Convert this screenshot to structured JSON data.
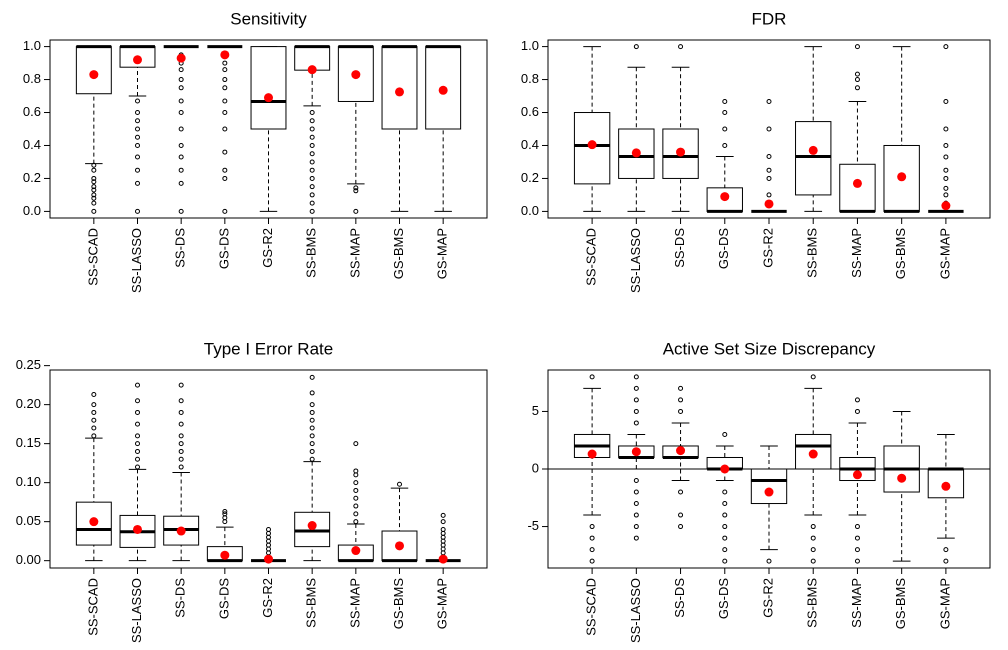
{
  "chart_data": [
    {
      "type": "box",
      "title": "Sensitivity",
      "categories": [
        "SS-SCAD",
        "SS-LASSO",
        "SS-DS",
        "GS-DS",
        "GS-R2",
        "SS-BMS",
        "SS-MAP",
        "GS-BMS",
        "GS-MAP"
      ],
      "ylim": [
        -0.04,
        1.04
      ],
      "yticks": [
        {
          "value": 0,
          "label": "0.0"
        },
        {
          "value": 0.2,
          "label": "0.2"
        },
        {
          "value": 0.4,
          "label": "0.4"
        },
        {
          "value": 0.6,
          "label": "0.6"
        },
        {
          "value": 0.8,
          "label": "0.8"
        },
        {
          "value": 1,
          "label": "1.0"
        }
      ],
      "mean_color": "#ff0000",
      "boxes": [
        {
          "whisker_low": 0.29,
          "q1": 0.714,
          "median": 1,
          "q3": 1,
          "whisker_high": 1,
          "mean": 0.83,
          "outliers": [
            0,
            0.05,
            0.08,
            0.1,
            0.13,
            0.15,
            0.18,
            0.2,
            0.25,
            0.28
          ]
        },
        {
          "whisker_low": 0.7,
          "q1": 0.875,
          "median": 1,
          "q3": 1,
          "whisker_high": 1,
          "mean": 0.92,
          "outliers": [
            0,
            0.17,
            0.25,
            0.33,
            0.4,
            0.45,
            0.5,
            0.55,
            0.6,
            0.67
          ]
        },
        {
          "whisker_low": 1,
          "q1": 1,
          "median": 1,
          "q3": 1,
          "whisker_high": 1,
          "mean": 0.93,
          "outliers": [
            0,
            0.17,
            0.25,
            0.33,
            0.4,
            0.5,
            0.6,
            0.67,
            0.75,
            0.8,
            0.86,
            0.9,
            0.95
          ]
        },
        {
          "whisker_low": 1,
          "q1": 1,
          "median": 1,
          "q3": 1,
          "whisker_high": 1,
          "mean": 0.95,
          "outliers": [
            0,
            0.2,
            0.25,
            0.36,
            0.5,
            0.6,
            0.67,
            0.75,
            0.8,
            0.86,
            0.9,
            0.95
          ]
        },
        {
          "whisker_low": 0,
          "q1": 0.5,
          "median": 0.667,
          "q3": 1,
          "whisker_high": 1,
          "mean": 0.69,
          "outliers": []
        },
        {
          "whisker_low": 0.64,
          "q1": 0.857,
          "median": 1,
          "q3": 1,
          "whisker_high": 1,
          "mean": 0.86,
          "outliers": [
            0,
            0.05,
            0.1,
            0.15,
            0.2,
            0.25,
            0.3,
            0.35,
            0.4,
            0.45,
            0.5,
            0.55,
            0.6
          ]
        },
        {
          "whisker_low": 0.167,
          "q1": 0.667,
          "median": 1,
          "q3": 1,
          "whisker_high": 1,
          "mean": 0.83,
          "outliers": [
            0,
            0.125,
            0.143
          ]
        },
        {
          "whisker_low": 0,
          "q1": 0.5,
          "median": 1,
          "q3": 1,
          "whisker_high": 1,
          "mean": 0.725,
          "outliers": []
        },
        {
          "whisker_low": 0,
          "q1": 0.5,
          "median": 1,
          "q3": 1,
          "whisker_high": 1,
          "mean": 0.735,
          "outliers": []
        }
      ]
    },
    {
      "type": "box",
      "title": "FDR",
      "categories": [
        "SS-SCAD",
        "SS-LASSO",
        "SS-DS",
        "GS-DS",
        "GS-R2",
        "SS-BMS",
        "SS-MAP",
        "GS-BMS",
        "GS-MAP"
      ],
      "ylim": [
        -0.04,
        1.04
      ],
      "yticks": [
        {
          "value": 0,
          "label": "0.0"
        },
        {
          "value": 0.2,
          "label": "0.2"
        },
        {
          "value": 0.4,
          "label": "0.4"
        },
        {
          "value": 0.6,
          "label": "0.6"
        },
        {
          "value": 0.8,
          "label": "0.8"
        },
        {
          "value": 1,
          "label": "1.0"
        }
      ],
      "mean_color": "#ff0000",
      "boxes": [
        {
          "whisker_low": 0,
          "q1": 0.167,
          "median": 0.4,
          "q3": 0.6,
          "whisker_high": 1,
          "mean": 0.405,
          "outliers": []
        },
        {
          "whisker_low": 0,
          "q1": 0.2,
          "median": 0.333,
          "q3": 0.5,
          "whisker_high": 0.875,
          "mean": 0.355,
          "outliers": [
            1
          ]
        },
        {
          "whisker_low": 0,
          "q1": 0.2,
          "median": 0.333,
          "q3": 0.5,
          "whisker_high": 0.875,
          "mean": 0.36,
          "outliers": [
            1
          ]
        },
        {
          "whisker_low": 0,
          "q1": 0,
          "median": 0,
          "q3": 0.143,
          "whisker_high": 0.333,
          "mean": 0.09,
          "outliers": [
            0.4,
            0.5,
            0.6,
            0.667
          ]
        },
        {
          "whisker_low": 0,
          "q1": 0,
          "median": 0,
          "q3": 0,
          "whisker_high": 0,
          "mean": 0.045,
          "outliers": [
            0.1,
            0.2,
            0.25,
            0.333,
            0.5,
            0.667
          ]
        },
        {
          "whisker_low": 0,
          "q1": 0.1,
          "median": 0.333,
          "q3": 0.545,
          "whisker_high": 1,
          "mean": 0.37,
          "outliers": []
        },
        {
          "whisker_low": 0,
          "q1": 0,
          "median": 0,
          "q3": 0.286,
          "whisker_high": 0.667,
          "mean": 0.17,
          "outliers": [
            0.75,
            0.8,
            0.833,
            1
          ]
        },
        {
          "whisker_low": 0,
          "q1": 0,
          "median": 0,
          "q3": 0.4,
          "whisker_high": 1,
          "mean": 0.21,
          "outliers": []
        },
        {
          "whisker_low": 0,
          "q1": 0,
          "median": 0,
          "q3": 0,
          "whisker_high": 0,
          "mean": 0.035,
          "outliers": [
            0.05,
            0.1,
            0.14,
            0.2,
            0.25,
            0.33,
            0.4,
            0.5,
            0.667,
            1
          ]
        }
      ]
    },
    {
      "type": "box",
      "title": "Type I Error Rate",
      "categories": [
        "SS-SCAD",
        "SS-LASSO",
        "SS-DS",
        "GS-DS",
        "GS-R2",
        "SS-BMS",
        "SS-MAP",
        "GS-BMS",
        "GS-MAP"
      ],
      "ylim": [
        -0.0094,
        0.2444
      ],
      "yticks": [
        {
          "value": 0,
          "label": "0.00"
        },
        {
          "value": 0.05,
          "label": "0.05"
        },
        {
          "value": 0.1,
          "label": "0.10"
        },
        {
          "value": 0.15,
          "label": "0.15"
        },
        {
          "value": 0.2,
          "label": "0.20"
        },
        {
          "value": 0.25,
          "label": "0.25"
        }
      ],
      "mean_color": "#ff0000",
      "boxes": [
        {
          "whisker_low": 0,
          "q1": 0.02,
          "median": 0.04,
          "q3": 0.075,
          "whisker_high": 0.157,
          "mean": 0.05,
          "outliers": [
            0.16,
            0.17,
            0.18,
            0.19,
            0.2,
            0.213
          ]
        },
        {
          "whisker_low": 0,
          "q1": 0.017,
          "median": 0.037,
          "q3": 0.058,
          "whisker_high": 0.117,
          "mean": 0.04,
          "outliers": [
            0.12,
            0.13,
            0.14,
            0.15,
            0.16,
            0.175,
            0.19,
            0.205,
            0.225
          ]
        },
        {
          "whisker_low": 0,
          "q1": 0.02,
          "median": 0.04,
          "q3": 0.057,
          "whisker_high": 0.113,
          "mean": 0.038,
          "outliers": [
            0.12,
            0.13,
            0.14,
            0.15,
            0.16,
            0.175,
            0.19,
            0.205,
            0.225
          ]
        },
        {
          "whisker_low": 0,
          "q1": 0,
          "median": 0,
          "q3": 0.018,
          "whisker_high": 0.043,
          "mean": 0.007,
          "outliers": [
            0.05,
            0.055,
            0.06,
            0.063
          ]
        },
        {
          "whisker_low": 0,
          "q1": 0,
          "median": 0,
          "q3": 0,
          "whisker_high": 0,
          "mean": 0.002,
          "outliers": [
            0.005,
            0.01,
            0.015,
            0.02,
            0.025,
            0.03,
            0.035,
            0.04
          ]
        },
        {
          "whisker_low": 0,
          "q1": 0.018,
          "median": 0.038,
          "q3": 0.062,
          "whisker_high": 0.127,
          "mean": 0.045,
          "outliers": [
            0.13,
            0.14,
            0.15,
            0.16,
            0.17,
            0.18,
            0.19,
            0.2,
            0.215,
            0.235
          ]
        },
        {
          "whisker_low": 0,
          "q1": 0,
          "median": 0,
          "q3": 0.02,
          "whisker_high": 0.047,
          "mean": 0.013,
          "outliers": [
            0.05,
            0.06,
            0.07,
            0.08,
            0.09,
            0.1,
            0.11,
            0.115,
            0.15
          ]
        },
        {
          "whisker_low": 0,
          "q1": 0,
          "median": 0,
          "q3": 0.038,
          "whisker_high": 0.093,
          "mean": 0.019,
          "outliers": [
            0.098
          ]
        },
        {
          "whisker_low": 0,
          "q1": 0,
          "median": 0,
          "q3": 0,
          "whisker_high": 0,
          "mean": 0.002,
          "outliers": [
            0.005,
            0.01,
            0.015,
            0.02,
            0.025,
            0.03,
            0.035,
            0.04,
            0.05,
            0.058
          ]
        }
      ]
    },
    {
      "type": "box",
      "title": "Active Set Size Discrepancy",
      "categories": [
        "SS-SCAD",
        "SS-LASSO",
        "SS-DS",
        "GS-DS",
        "GS-R2",
        "SS-BMS",
        "SS-MAP",
        "GS-BMS",
        "GS-MAP"
      ],
      "ylim": [
        -8.6,
        8.6
      ],
      "yticks": [
        -5,
        0,
        5
      ],
      "reference_line": 0,
      "mean_color": "#ff0000",
      "boxes": [
        {
          "whisker_low": -4,
          "q1": 1,
          "median": 2,
          "q3": 3,
          "whisker_high": 7,
          "mean": 1.3,
          "outliers": [
            -8,
            -7,
            -6,
            -5,
            8
          ]
        },
        {
          "whisker_low": 0,
          "q1": 1,
          "median": 1,
          "q3": 2,
          "whisker_high": 3,
          "mean": 1.5,
          "outliers": [
            -6,
            -5,
            -4,
            -3,
            -2,
            -1,
            4,
            5,
            6,
            7,
            8
          ]
        },
        {
          "whisker_low": -1,
          "q1": 1,
          "median": 1,
          "q3": 2,
          "whisker_high": 4,
          "mean": 1.6,
          "outliers": [
            -5,
            -4,
            -2,
            5,
            6,
            7
          ]
        },
        {
          "whisker_low": -1,
          "q1": 0,
          "median": 0,
          "q3": 1,
          "whisker_high": 2,
          "mean": 0,
          "outliers": [
            -8,
            -7,
            -6,
            -5,
            -4,
            -3,
            -2,
            3
          ]
        },
        {
          "whisker_low": -7,
          "q1": -3,
          "median": -1,
          "q3": 0,
          "whisker_high": 2,
          "mean": -2,
          "outliers": [
            -8
          ]
        },
        {
          "whisker_low": -4,
          "q1": 0,
          "median": 2,
          "q3": 3,
          "whisker_high": 7,
          "mean": 1.3,
          "outliers": [
            -8,
            -7,
            -6,
            -5,
            8
          ]
        },
        {
          "whisker_low": -4,
          "q1": -1,
          "median": 0,
          "q3": 1,
          "whisker_high": 4,
          "mean": -0.5,
          "outliers": [
            -8,
            -7,
            -6,
            -5,
            5,
            6
          ]
        },
        {
          "whisker_low": -8,
          "q1": -2,
          "median": 0,
          "q3": 2,
          "whisker_high": 5,
          "mean": -0.8,
          "outliers": []
        },
        {
          "whisker_low": -6,
          "q1": -2.5,
          "median": 0,
          "q3": 0,
          "whisker_high": 3,
          "mean": -1.5,
          "outliers": [
            -8,
            -7
          ]
        }
      ]
    }
  ]
}
